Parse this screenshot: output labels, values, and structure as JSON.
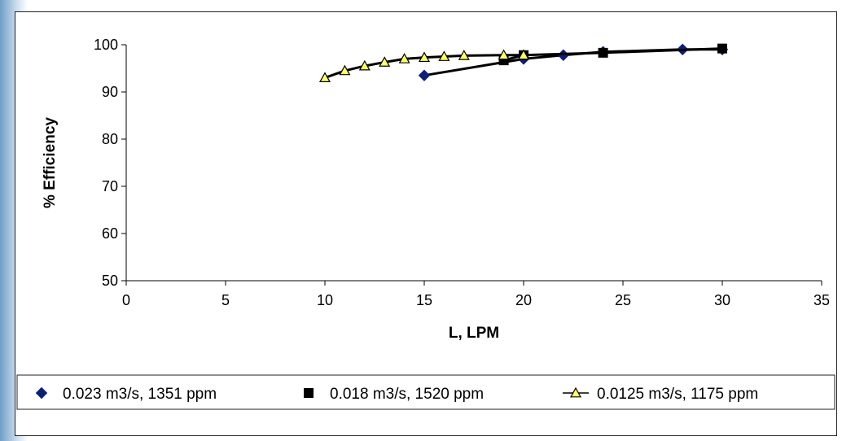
{
  "chart_data": {
    "type": "line",
    "title": "",
    "xlabel": "L, LPM",
    "ylabel": "% Efficiency",
    "xlim": [
      0,
      35
    ],
    "ylim": [
      50,
      100
    ],
    "xticks": [
      "0",
      "5",
      "10",
      "15",
      "20",
      "25",
      "30",
      "35"
    ],
    "yticks": [
      "50",
      "60",
      "70",
      "80",
      "90",
      "100"
    ],
    "grid": false,
    "legend_position": "bottom",
    "series": [
      {
        "name": "0.023 m3/s, 1351 ppm",
        "marker": "diamond",
        "color": "#0b1f7a",
        "points": [
          {
            "x": 15,
            "y": 93.5
          },
          {
            "x": 20,
            "y": 97.0
          },
          {
            "x": 22,
            "y": 97.8
          },
          {
            "x": 24,
            "y": 98.5
          },
          {
            "x": 28,
            "y": 99.0
          },
          {
            "x": 30,
            "y": 99.0
          }
        ]
      },
      {
        "name": "0.018 m3/s, 1520 ppm",
        "marker": "square",
        "color": "#000000",
        "points": [
          {
            "x": 19,
            "y": 96.7
          },
          {
            "x": 20,
            "y": 97.8
          },
          {
            "x": 24,
            "y": 98.3
          },
          {
            "x": 30,
            "y": 99.2
          }
        ]
      },
      {
        "name": "0.0125 m3/s, 1175 ppm",
        "marker": "triangle",
        "color": "#ffff66",
        "points": [
          {
            "x": 10,
            "y": 93.0
          },
          {
            "x": 11,
            "y": 94.5
          },
          {
            "x": 12,
            "y": 95.5
          },
          {
            "x": 13,
            "y": 96.3
          },
          {
            "x": 14,
            "y": 97.0
          },
          {
            "x": 15,
            "y": 97.3
          },
          {
            "x": 16,
            "y": 97.5
          },
          {
            "x": 17,
            "y": 97.7
          },
          {
            "x": 19,
            "y": 97.8
          },
          {
            "x": 20,
            "y": 97.8
          }
        ]
      }
    ]
  }
}
